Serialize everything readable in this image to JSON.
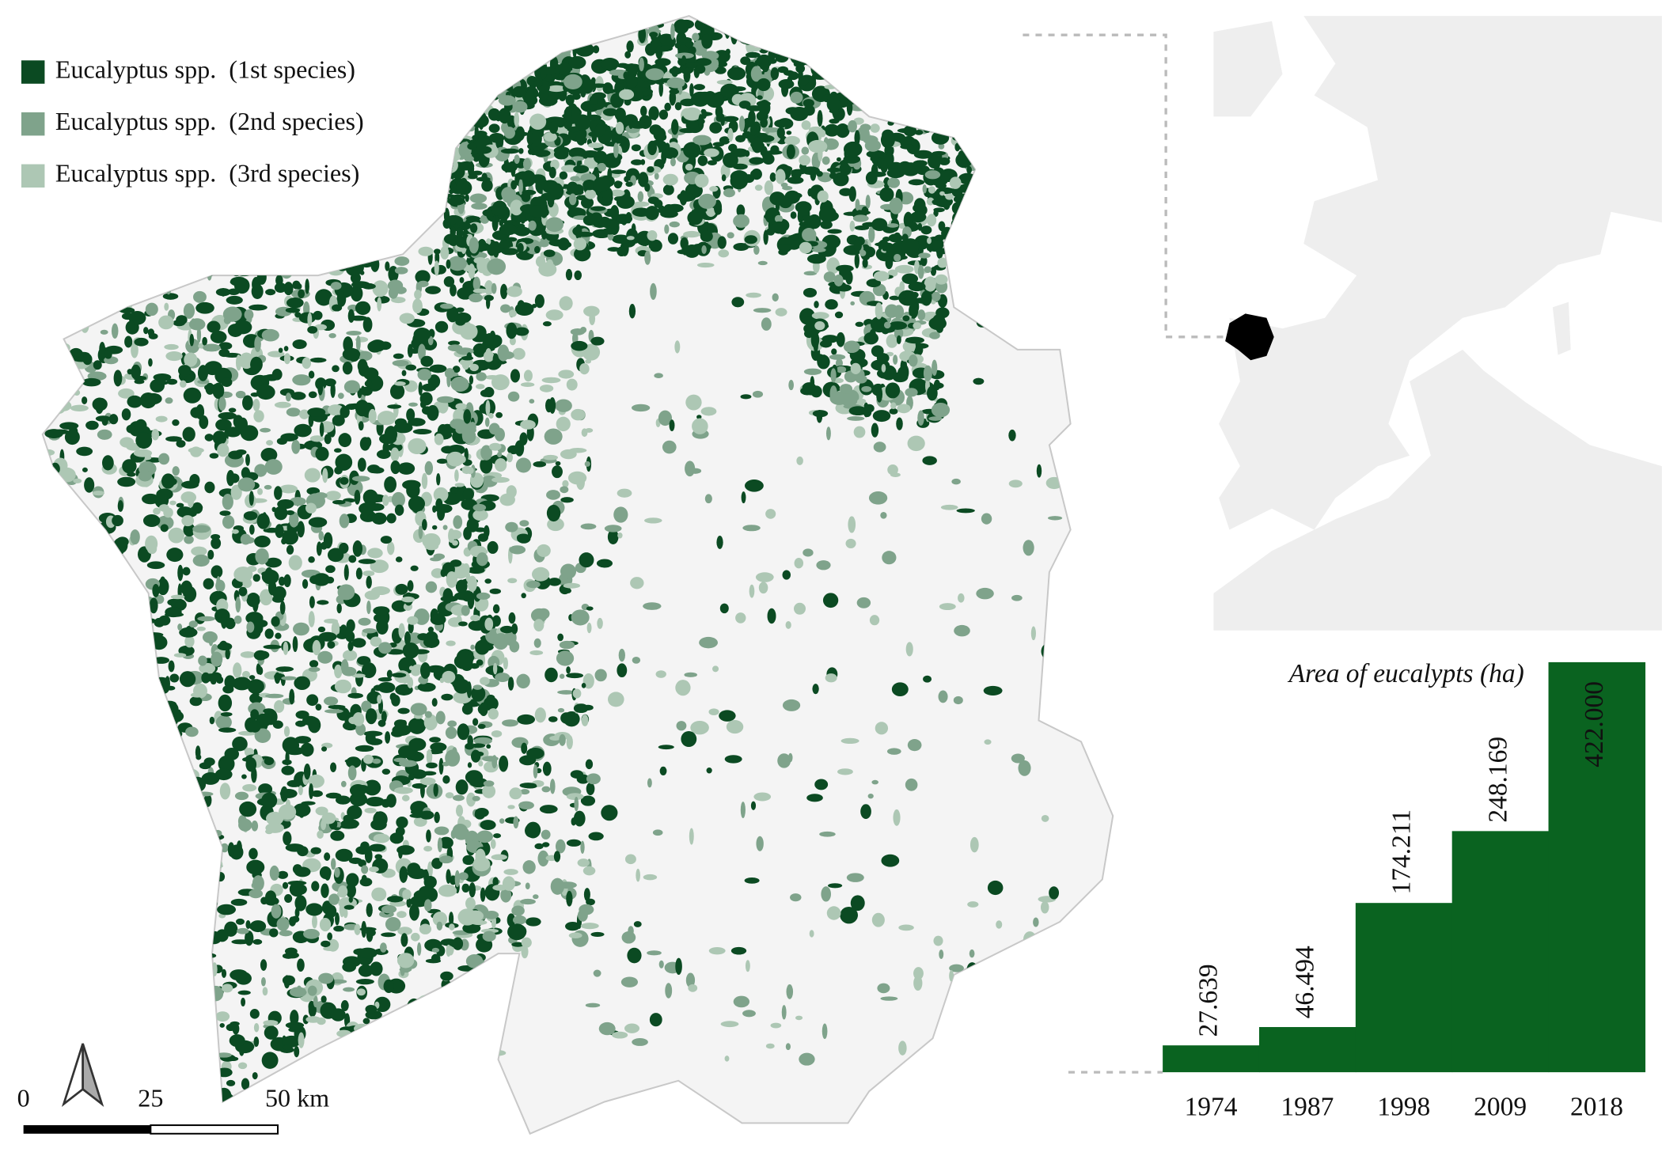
{
  "legend": {
    "items": [
      {
        "label": "Eucalyptus spp.  (1st species)",
        "color": "#0b4a22"
      },
      {
        "label": "Eucalyptus spp.  (2nd species)",
        "color": "#7fa38b"
      },
      {
        "label": "Eucalyptus spp.  (3rd species)",
        "color": "#adc7b4"
      }
    ]
  },
  "scale_bar": {
    "labels": [
      "0",
      "25",
      "50 km"
    ]
  },
  "chart_data": {
    "type": "bar",
    "title": "Area of eucalypts (ha)",
    "categories": [
      "1974",
      "1987",
      "1998",
      "2009",
      "2018"
    ],
    "values": [
      27639,
      46494,
      174211,
      248169,
      422000
    ],
    "value_labels": [
      "27.639",
      "46.494",
      "174.211",
      "248.169",
      "422.000"
    ],
    "color": "#0a6320",
    "ylim": [
      0,
      422000
    ]
  }
}
